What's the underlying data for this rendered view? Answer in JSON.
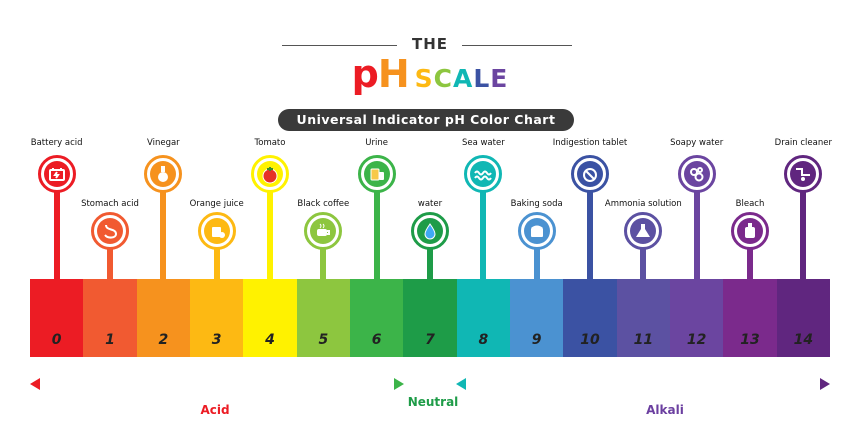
{
  "header": {
    "the": "THE",
    "ph": "pH",
    "scale": "SCALE",
    "subtitle": "Universal Indicator pH Color Chart"
  },
  "scale": [
    {
      "ph": "0",
      "color": "#ec1c24",
      "label": "Battery acid",
      "row": "top",
      "icon": "battery-icon"
    },
    {
      "ph": "1",
      "color": "#f15a31",
      "label": "Stomach acid",
      "row": "bottom",
      "icon": "stomach-icon"
    },
    {
      "ph": "2",
      "color": "#f6921e",
      "label": "Vinegar",
      "row": "top",
      "icon": "vinegar-bottle-icon"
    },
    {
      "ph": "3",
      "color": "#fdb913",
      "label": "Orange juice",
      "row": "bottom",
      "icon": "orange-juice-icon"
    },
    {
      "ph": "4",
      "color": "#fff200",
      "label": "Tomato",
      "row": "top",
      "icon": "tomato-icon"
    },
    {
      "ph": "5",
      "color": "#8dc63f",
      "label": "Black coffee",
      "row": "bottom",
      "icon": "coffee-cup-icon"
    },
    {
      "ph": "6",
      "color": "#3cb449",
      "label": "Urine",
      "row": "top",
      "icon": "urine-jar-icon"
    },
    {
      "ph": "7",
      "color": "#1e9c48",
      "label": "water",
      "row": "bottom",
      "icon": "water-drop-icon"
    },
    {
      "ph": "8",
      "color": "#10b7b4",
      "label": "Sea water",
      "row": "top",
      "icon": "sea-wave-icon"
    },
    {
      "ph": "9",
      "color": "#4b92d1",
      "label": "Baking soda",
      "row": "bottom",
      "icon": "baking-soda-icon"
    },
    {
      "ph": "10",
      "color": "#3b52a3",
      "label": "Indigestion tablet",
      "row": "top",
      "icon": "tablet-icon"
    },
    {
      "ph": "11",
      "color": "#5c51a2",
      "label": "Ammonia solution",
      "row": "bottom",
      "icon": "flask-icon"
    },
    {
      "ph": "12",
      "color": "#6b45a0",
      "label": "Soapy water",
      "row": "top",
      "icon": "soap-bubbles-icon"
    },
    {
      "ph": "13",
      "color": "#7b2a8c",
      "label": "Bleach",
      "row": "bottom",
      "icon": "bleach-bottle-icon"
    },
    {
      "ph": "14",
      "color": "#60267f",
      "label": "Drain cleaner",
      "row": "top",
      "icon": "drain-pipe-icon"
    }
  ],
  "footer": {
    "acid": "Acid",
    "neutral": "Neutral",
    "alkali": "Alkali",
    "acid_color": "#ec1c24",
    "neutral_color": "#1e9c48",
    "alkali_color": "#6b3fa0"
  },
  "title_letter_colors": [
    "#ec1c24",
    "#f6921e",
    "#fdb913",
    "#8dc63f",
    "#10b7b4",
    "#3b52a3",
    "#6b45a0"
  ]
}
